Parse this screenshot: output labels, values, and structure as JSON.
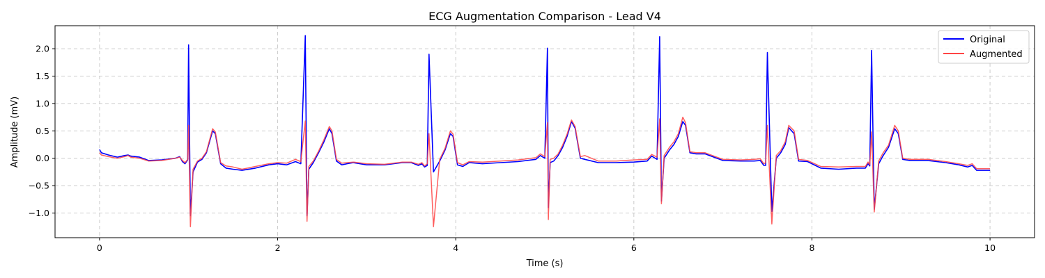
{
  "chart_data": {
    "type": "line",
    "title": "ECG Augmentation Comparison - Lead V4",
    "xlabel": "Time (s)",
    "ylabel": "Amplitude (mV)",
    "xlim": [
      -0.5,
      10.5
    ],
    "ylim": [
      -1.45,
      2.42
    ],
    "xticks": [
      0,
      2,
      4,
      6,
      8,
      10
    ],
    "xtick_labels": [
      "0",
      "2",
      "4",
      "6",
      "8",
      "10"
    ],
    "yticks": [
      -1.0,
      -0.5,
      0.0,
      0.5,
      1.0,
      1.5,
      2.0
    ],
    "ytick_labels": [
      "−1.0",
      "−0.5",
      "0.0",
      "0.5",
      "1.0",
      "1.5",
      "2.0"
    ],
    "grid": true,
    "legend_position": "top-right",
    "series": [
      {
        "name": "Original",
        "color": "#0000ff",
        "x": [
          0,
          0.02,
          0.1,
          0.2,
          0.28,
          0.32,
          0.35,
          0.45,
          0.55,
          0.7,
          0.85,
          0.9,
          0.93,
          0.96,
          0.99,
          1.0,
          1.02,
          1.05,
          1.1,
          1.15,
          1.2,
          1.27,
          1.3,
          1.36,
          1.42,
          1.5,
          1.6,
          1.75,
          1.9,
          2.0,
          2.1,
          2.2,
          2.26,
          2.31,
          2.33,
          2.35,
          2.4,
          2.46,
          2.52,
          2.58,
          2.61,
          2.66,
          2.72,
          2.78,
          2.85,
          3.0,
          3.2,
          3.4,
          3.5,
          3.58,
          3.62,
          3.65,
          3.68,
          3.7,
          3.75,
          3.82,
          3.88,
          3.94,
          3.97,
          4.02,
          4.08,
          4.15,
          4.3,
          4.5,
          4.7,
          4.9,
          4.95,
          5.0,
          5.03,
          5.04,
          5.06,
          5.1,
          5.15,
          5.2,
          5.25,
          5.3,
          5.34,
          5.4,
          5.45,
          5.6,
          5.8,
          6.0,
          6.15,
          6.2,
          6.26,
          6.29,
          6.31,
          6.34,
          6.4,
          6.45,
          6.5,
          6.55,
          6.58,
          6.63,
          6.7,
          6.8,
          7.0,
          7.2,
          7.35,
          7.42,
          7.46,
          7.48,
          7.5,
          7.55,
          7.6,
          7.65,
          7.7,
          7.74,
          7.8,
          7.85,
          7.95,
          8.1,
          8.3,
          8.5,
          8.6,
          8.63,
          8.65,
          8.67,
          8.7,
          8.75,
          8.8,
          8.86,
          8.93,
          8.97,
          9.02,
          9.1,
          9.3,
          9.5,
          9.65,
          9.75,
          9.8,
          9.85,
          10.0
        ],
        "y": [
          0.16,
          0.1,
          0.06,
          0.02,
          0.05,
          0.06,
          0.04,
          0.02,
          -0.04,
          -0.03,
          0.0,
          0.03,
          -0.06,
          -0.1,
          -0.03,
          2.07,
          -1.05,
          -0.25,
          -0.07,
          -0.02,
          0.1,
          0.5,
          0.45,
          -0.1,
          -0.18,
          -0.2,
          -0.22,
          -0.18,
          -0.12,
          -0.1,
          -0.12,
          -0.06,
          -0.1,
          2.24,
          -1.05,
          -0.2,
          -0.08,
          0.1,
          0.3,
          0.54,
          0.45,
          -0.05,
          -0.12,
          -0.1,
          -0.08,
          -0.12,
          -0.12,
          -0.08,
          -0.08,
          -0.13,
          -0.1,
          -0.16,
          -0.13,
          1.9,
          -0.25,
          -0.05,
          0.15,
          0.45,
          0.4,
          -0.12,
          -0.15,
          -0.08,
          -0.1,
          -0.08,
          -0.06,
          -0.02,
          0.05,
          0.0,
          2.01,
          -0.9,
          -0.08,
          -0.05,
          0.05,
          0.2,
          0.4,
          0.67,
          0.55,
          0.0,
          -0.02,
          -0.08,
          -0.08,
          -0.07,
          -0.05,
          0.04,
          -0.02,
          2.22,
          -0.78,
          0.0,
          0.15,
          0.25,
          0.4,
          0.67,
          0.6,
          0.1,
          0.08,
          0.08,
          -0.04,
          -0.05,
          -0.05,
          -0.04,
          -0.13,
          -0.13,
          1.93,
          -0.97,
          0.0,
          0.1,
          0.25,
          0.56,
          0.45,
          -0.05,
          -0.06,
          -0.18,
          -0.2,
          -0.18,
          -0.18,
          -0.1,
          -0.14,
          1.97,
          -0.93,
          -0.1,
          0.05,
          0.2,
          0.54,
          0.45,
          -0.02,
          -0.04,
          -0.04,
          -0.08,
          -0.12,
          -0.16,
          -0.13,
          -0.22,
          -0.22
        ]
      },
      {
        "name": "Augmented",
        "color": "#ff4444",
        "x": [
          0,
          0.02,
          0.1,
          0.2,
          0.28,
          0.32,
          0.35,
          0.45,
          0.55,
          0.7,
          0.85,
          0.9,
          0.93,
          0.96,
          0.99,
          1.0,
          1.02,
          1.05,
          1.1,
          1.15,
          1.2,
          1.27,
          1.3,
          1.36,
          1.42,
          1.5,
          1.6,
          1.75,
          1.9,
          2.0,
          2.1,
          2.2,
          2.26,
          2.31,
          2.33,
          2.35,
          2.4,
          2.46,
          2.52,
          2.58,
          2.61,
          2.66,
          2.72,
          2.78,
          2.85,
          3.0,
          3.2,
          3.4,
          3.5,
          3.58,
          3.62,
          3.65,
          3.68,
          3.7,
          3.75,
          3.82,
          3.88,
          3.94,
          3.97,
          4.02,
          4.08,
          4.15,
          4.3,
          4.5,
          4.7,
          4.9,
          4.95,
          5.0,
          5.03,
          5.04,
          5.06,
          5.1,
          5.15,
          5.2,
          5.25,
          5.3,
          5.34,
          5.4,
          5.45,
          5.6,
          5.8,
          6.0,
          6.15,
          6.2,
          6.26,
          6.29,
          6.31,
          6.34,
          6.4,
          6.45,
          6.5,
          6.55,
          6.58,
          6.63,
          6.7,
          6.8,
          7.0,
          7.2,
          7.35,
          7.42,
          7.46,
          7.48,
          7.5,
          7.55,
          7.6,
          7.65,
          7.7,
          7.74,
          7.8,
          7.85,
          7.95,
          8.1,
          8.3,
          8.5,
          8.6,
          8.63,
          8.65,
          8.67,
          8.7,
          8.75,
          8.8,
          8.86,
          8.93,
          8.97,
          9.02,
          9.1,
          9.3,
          9.5,
          9.65,
          9.75,
          9.8,
          9.85,
          10.0
        ],
        "y": [
          0.1,
          0.06,
          0.03,
          0.0,
          0.03,
          0.05,
          0.02,
          0.0,
          -0.05,
          -0.04,
          0.0,
          0.02,
          -0.04,
          -0.08,
          -0.02,
          0.6,
          -1.25,
          -0.2,
          -0.05,
          0.0,
          0.12,
          0.54,
          0.48,
          -0.08,
          -0.14,
          -0.16,
          -0.2,
          -0.15,
          -0.1,
          -0.08,
          -0.09,
          -0.02,
          -0.06,
          0.68,
          -1.15,
          -0.15,
          -0.05,
          0.13,
          0.34,
          0.58,
          0.5,
          -0.02,
          -0.09,
          -0.08,
          -0.07,
          -0.1,
          -0.11,
          -0.07,
          -0.07,
          -0.11,
          -0.08,
          -0.14,
          -0.1,
          0.45,
          -1.25,
          -0.02,
          0.18,
          0.5,
          0.44,
          -0.08,
          -0.12,
          -0.06,
          -0.07,
          -0.05,
          -0.03,
          0.01,
          0.08,
          0.03,
          0.65,
          -1.12,
          -0.02,
          0.0,
          0.08,
          0.24,
          0.44,
          0.7,
          0.58,
          0.03,
          0.05,
          -0.05,
          -0.05,
          -0.03,
          -0.02,
          0.07,
          0.02,
          0.72,
          -0.83,
          0.05,
          0.2,
          0.3,
          0.45,
          0.75,
          0.65,
          0.12,
          0.1,
          0.1,
          -0.02,
          -0.03,
          -0.02,
          -0.01,
          -0.1,
          -0.08,
          0.6,
          -1.2,
          0.05,
          0.14,
          0.3,
          0.6,
          0.5,
          -0.02,
          -0.04,
          -0.15,
          -0.16,
          -0.15,
          -0.15,
          -0.07,
          -0.12,
          0.48,
          -0.98,
          -0.05,
          0.1,
          0.24,
          0.6,
          0.5,
          0.0,
          -0.02,
          -0.02,
          -0.06,
          -0.1,
          -0.13,
          -0.1,
          -0.19,
          -0.19
        ]
      }
    ]
  }
}
